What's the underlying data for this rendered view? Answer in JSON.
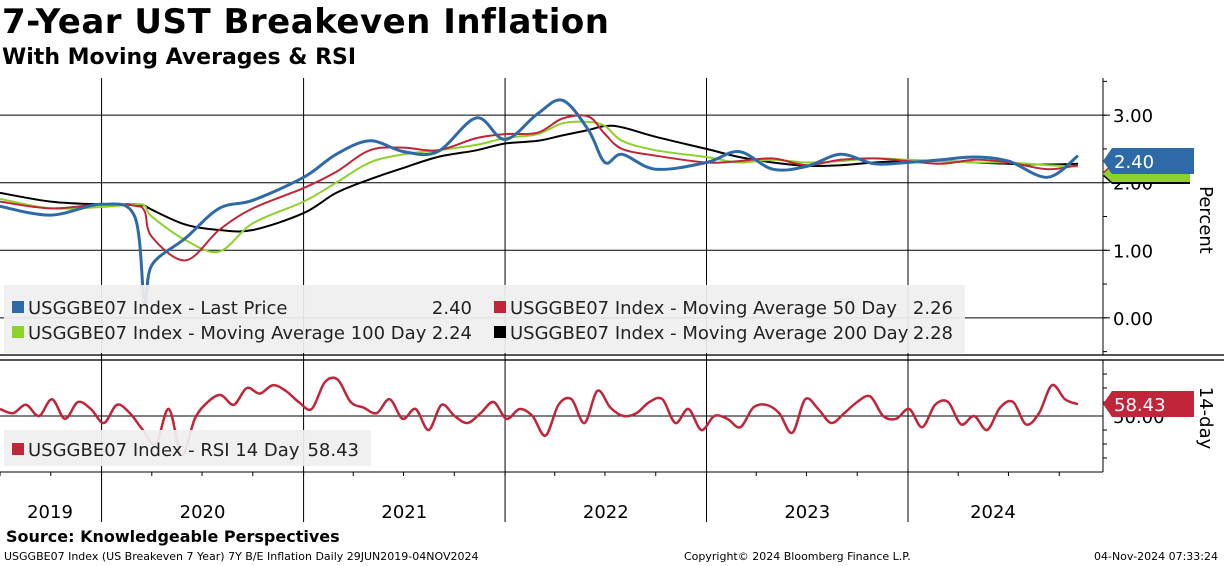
{
  "title": "7-Year UST Breakeven Inflation",
  "subtitle": "With Moving Averages & RSI",
  "source": "Source: Knowledgeable Perspectives",
  "footer": {
    "left": "USGGBE07 Index (US Breakeven 7 Year) 7Y B/E Inflation  Daily 29JUN2019-04NOV2024",
    "middle": "Copyright© 2024 Bloomberg Finance L.P.",
    "right": "04-Nov-2024 07:33:24"
  },
  "colors": {
    "last_price": "#2f6aa8",
    "ma50": "#c0253a",
    "ma100": "#8dd12a",
    "ma200": "#000000",
    "rsi": "#c0253a"
  },
  "chart_data": [
    {
      "type": "line",
      "ylabel": "Percent",
      "ylim": [
        -0.55,
        3.55
      ],
      "yticks": [
        "3.00",
        "2.00",
        "1.00",
        "0.00"
      ],
      "ytick_values": [
        3.0,
        2.0,
        1.0,
        0.0
      ],
      "grid": true,
      "legend_position": "bottom-left",
      "x": [
        "2019-07-01",
        "2019-10-01",
        "2020-01-01",
        "2020-03-01",
        "2020-03-19",
        "2020-04-01",
        "2020-06-01",
        "2020-08-01",
        "2020-10-01",
        "2021-01-01",
        "2021-03-01",
        "2021-05-01",
        "2021-07-01",
        "2021-09-01",
        "2021-11-10",
        "2022-01-01",
        "2022-03-01",
        "2022-04-15",
        "2022-06-01",
        "2022-07-01",
        "2022-08-01",
        "2022-10-01",
        "2023-01-01",
        "2023-03-01",
        "2023-05-01",
        "2023-07-01",
        "2023-09-01",
        "2023-11-01",
        "2024-01-01",
        "2024-03-01",
        "2024-05-01",
        "2024-07-01",
        "2024-09-10",
        "2024-11-04"
      ],
      "series": [
        {
          "name": "USGGBE07 Index - Last Price",
          "last": "2.40",
          "values": [
            1.65,
            1.52,
            1.68,
            1.5,
            0.2,
            0.78,
            1.18,
            1.62,
            1.74,
            2.08,
            2.42,
            2.62,
            2.46,
            2.46,
            2.96,
            2.64,
            3.02,
            3.22,
            2.78,
            2.3,
            2.42,
            2.2,
            2.3,
            2.46,
            2.2,
            2.24,
            2.42,
            2.28,
            2.3,
            2.34,
            2.38,
            2.32,
            2.08,
            2.4
          ]
        },
        {
          "name": "USGGBE07 Index - Moving Average 50 Day",
          "last": "2.26",
          "values": [
            1.72,
            1.62,
            1.68,
            1.66,
            1.58,
            1.2,
            0.85,
            1.3,
            1.62,
            1.92,
            2.16,
            2.48,
            2.52,
            2.48,
            2.66,
            2.72,
            2.74,
            2.95,
            2.98,
            2.72,
            2.5,
            2.4,
            2.3,
            2.32,
            2.36,
            2.26,
            2.34,
            2.36,
            2.32,
            2.28,
            2.34,
            2.3,
            2.2,
            2.26
          ]
        },
        {
          "name": "USGGBE07 Index - Moving Average 100 Day",
          "last": "2.24",
          "values": [
            1.76,
            1.62,
            1.64,
            1.68,
            1.66,
            1.5,
            1.15,
            0.98,
            1.4,
            1.72,
            2.0,
            2.3,
            2.42,
            2.48,
            2.56,
            2.66,
            2.72,
            2.88,
            2.9,
            2.84,
            2.62,
            2.48,
            2.38,
            2.3,
            2.34,
            2.3,
            2.32,
            2.36,
            2.34,
            2.32,
            2.3,
            2.3,
            2.26,
            2.24
          ]
        },
        {
          "name": "USGGBE07 Index - Moving Average 200 Day",
          "last": "2.28",
          "values": [
            1.85,
            1.72,
            1.68,
            1.68,
            1.66,
            1.6,
            1.38,
            1.3,
            1.3,
            1.55,
            1.85,
            2.05,
            2.22,
            2.38,
            2.48,
            2.58,
            2.62,
            2.7,
            2.78,
            2.84,
            2.82,
            2.68,
            2.5,
            2.38,
            2.3,
            2.25,
            2.26,
            2.3,
            2.32,
            2.32,
            2.3,
            2.28,
            2.27,
            2.28
          ]
        }
      ]
    },
    {
      "type": "line",
      "ylabel": "14-day",
      "ylim": [
        10,
        90
      ],
      "yticks": [
        "50.00"
      ],
      "ytick_values": [
        50
      ],
      "grid": true,
      "legend_position": "bottom-left",
      "x_tick_labels": [
        "2019",
        "2020",
        "2021",
        "2022",
        "2023",
        "2024"
      ],
      "series": [
        {
          "name": "USGGBE07 Index - RSI 14 Day",
          "last": "58.43",
          "values": [
            55,
            52,
            58,
            50,
            62,
            48,
            60,
            55,
            45,
            58,
            52,
            40,
            30,
            55,
            22,
            48,
            60,
            65,
            58,
            70,
            66,
            72,
            68,
            60,
            55,
            74,
            76,
            60,
            56,
            52,
            62,
            48,
            55,
            40,
            58,
            50,
            45,
            52,
            60,
            48,
            55,
            50,
            36,
            58,
            62,
            45,
            68,
            56,
            50,
            52,
            60,
            62,
            45,
            55,
            40,
            50,
            48,
            42,
            56,
            58,
            52,
            38,
            62,
            55,
            45,
            52,
            60,
            64,
            50,
            48,
            55,
            42,
            58,
            60,
            44,
            50,
            40,
            56,
            60,
            44,
            52,
            72,
            62,
            58.43
          ]
        }
      ]
    }
  ]
}
